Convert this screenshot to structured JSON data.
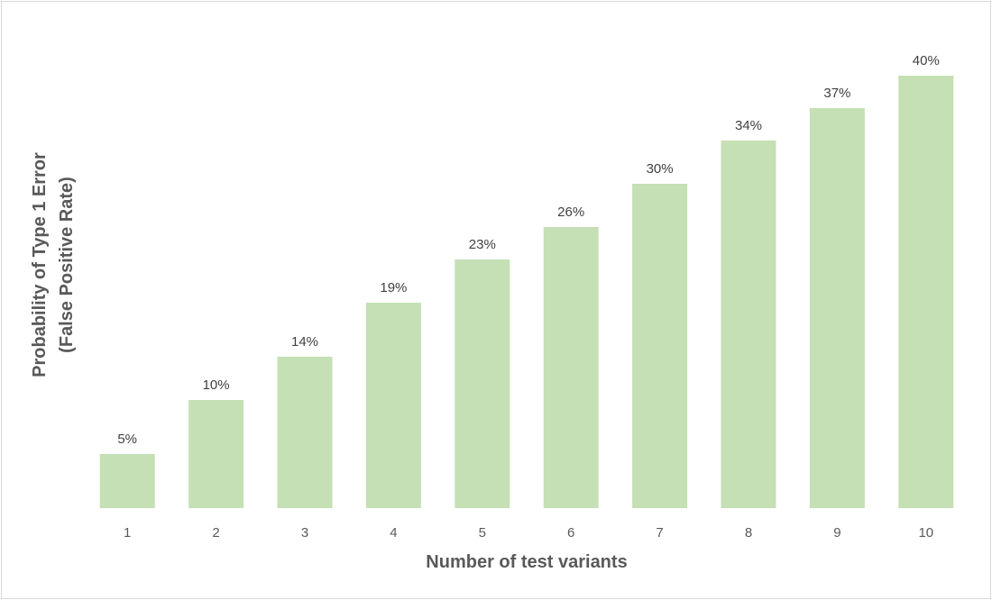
{
  "chart_data": {
    "type": "bar",
    "categories": [
      "1",
      "2",
      "3",
      "4",
      "5",
      "6",
      "7",
      "8",
      "9",
      "10"
    ],
    "values": [
      5,
      10,
      14,
      19,
      23,
      26,
      30,
      34,
      37,
      40
    ],
    "data_labels": [
      "5%",
      "10%",
      "14%",
      "19%",
      "23%",
      "26%",
      "30%",
      "34%",
      "37%",
      "40%"
    ],
    "xlabel": "Number of test variants",
    "ylabel_lines": [
      "Probability of Type 1 Error",
      "(False Positive Rate)"
    ],
    "ylim": [
      0,
      40
    ],
    "grid": false,
    "legend": "none",
    "bar_color": "#c5e0b4"
  }
}
